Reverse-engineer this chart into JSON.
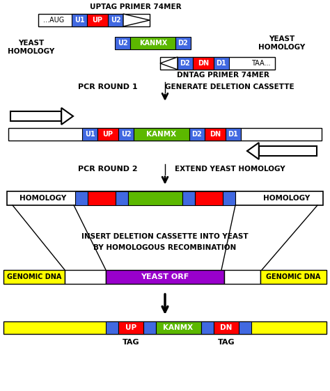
{
  "background": "#ffffff",
  "colors": {
    "blue": "#4169e1",
    "red": "#ff0000",
    "green": "#5cb800",
    "yellow": "#ffff00",
    "purple": "#9900cc",
    "white": "#ffffff",
    "black": "#000000"
  },
  "labels": {
    "uptag": "UPTAG PRIMER 74MER",
    "dntag": "DNTAG PRIMER 74MER",
    "yeast_homology_left": "YEAST\nHOMOLOGY",
    "yeast_homology_right": "YEAST\nHOMOLOGY",
    "pcr1": "PCR ROUND 1",
    "gen_del": "GENERATE DELETION CASSETTE",
    "pcr2": "PCR ROUND 2",
    "ext_yeast": "EXTEND YEAST HOMOLOGY",
    "homology_left": "HOMOLOGY",
    "homology_right": "HOMOLOGY",
    "insert_text1": "INSERT DELETION CASSETTE INTO YEAST",
    "insert_text2": "BY HOMOLOGOUS RECOMBINATION",
    "genomic_dna_left": "GENOMIC DNA",
    "genomic_dna_right": "GENOMIC DNA",
    "yeast_orf": "YEAST ORF",
    "tag_left": "TAG",
    "tag_right": "TAG"
  }
}
